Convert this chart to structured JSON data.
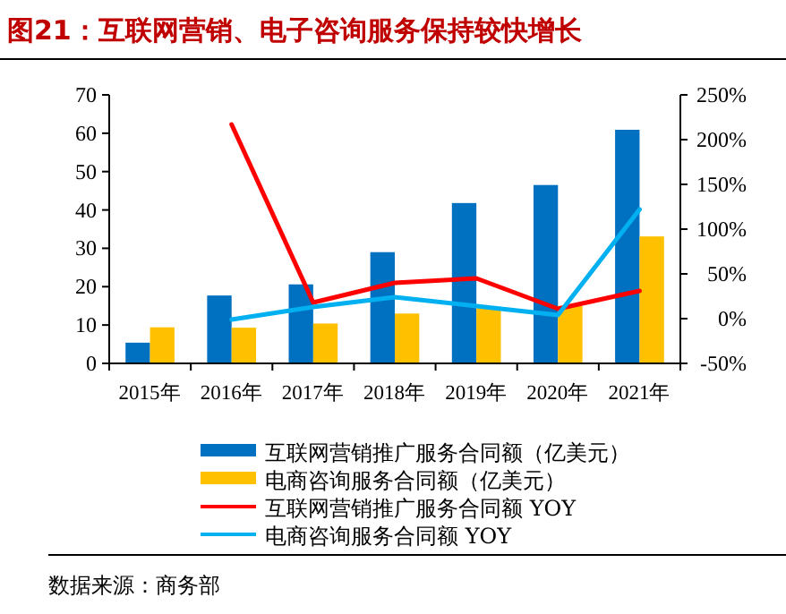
{
  "chart_data": {
    "type": "bar",
    "title": "图21：互联网营销、电子咨询服务保持较快增长",
    "categories": [
      "2015年",
      "2016年",
      "2017年",
      "2018年",
      "2019年",
      "2020年",
      "2021年"
    ],
    "series": [
      {
        "name": "互联网营销推广服务合同额（亿美元）",
        "color": "#0070c0",
        "values": [
          5.4,
          17.7,
          20.6,
          29.0,
          41.8,
          46.5,
          60.9
        ]
      },
      {
        "name": "电商咨询服务合同额（亿美元）",
        "color": "#ffc000",
        "values": [
          9.4,
          9.3,
          10.4,
          13.0,
          14.4,
          15.0,
          33.1
        ]
      },
      {
        "name": "互联网营销推广服务合同额 YOY",
        "type": "line",
        "axis": "y2",
        "color": "#ff0000",
        "values": [
          null,
          217,
          18,
          40,
          45,
          11,
          31
        ]
      },
      {
        "name": "电商咨询服务合同额 YOY",
        "type": "line",
        "axis": "y2",
        "color": "#00b0f0",
        "values": [
          null,
          -1,
          13,
          24,
          14,
          4,
          122
        ]
      }
    ],
    "ylim": [
      0,
      70
    ],
    "yticks": [
      0,
      10,
      20,
      30,
      40,
      50,
      60,
      70
    ],
    "y2lim": [
      -50,
      250
    ],
    "y2ticks": [
      {
        "value": -50,
        "label": "-50%"
      },
      {
        "value": 0,
        "label": "0%"
      },
      {
        "value": 50,
        "label": "50%"
      },
      {
        "value": 100,
        "label": "100%"
      },
      {
        "value": 150,
        "label": "150%"
      },
      {
        "value": 200,
        "label": "200%"
      },
      {
        "value": 250,
        "label": "250%"
      }
    ],
    "legend": "bottom",
    "grid": false,
    "annotations": [
      "数据来源：商务部"
    ]
  }
}
